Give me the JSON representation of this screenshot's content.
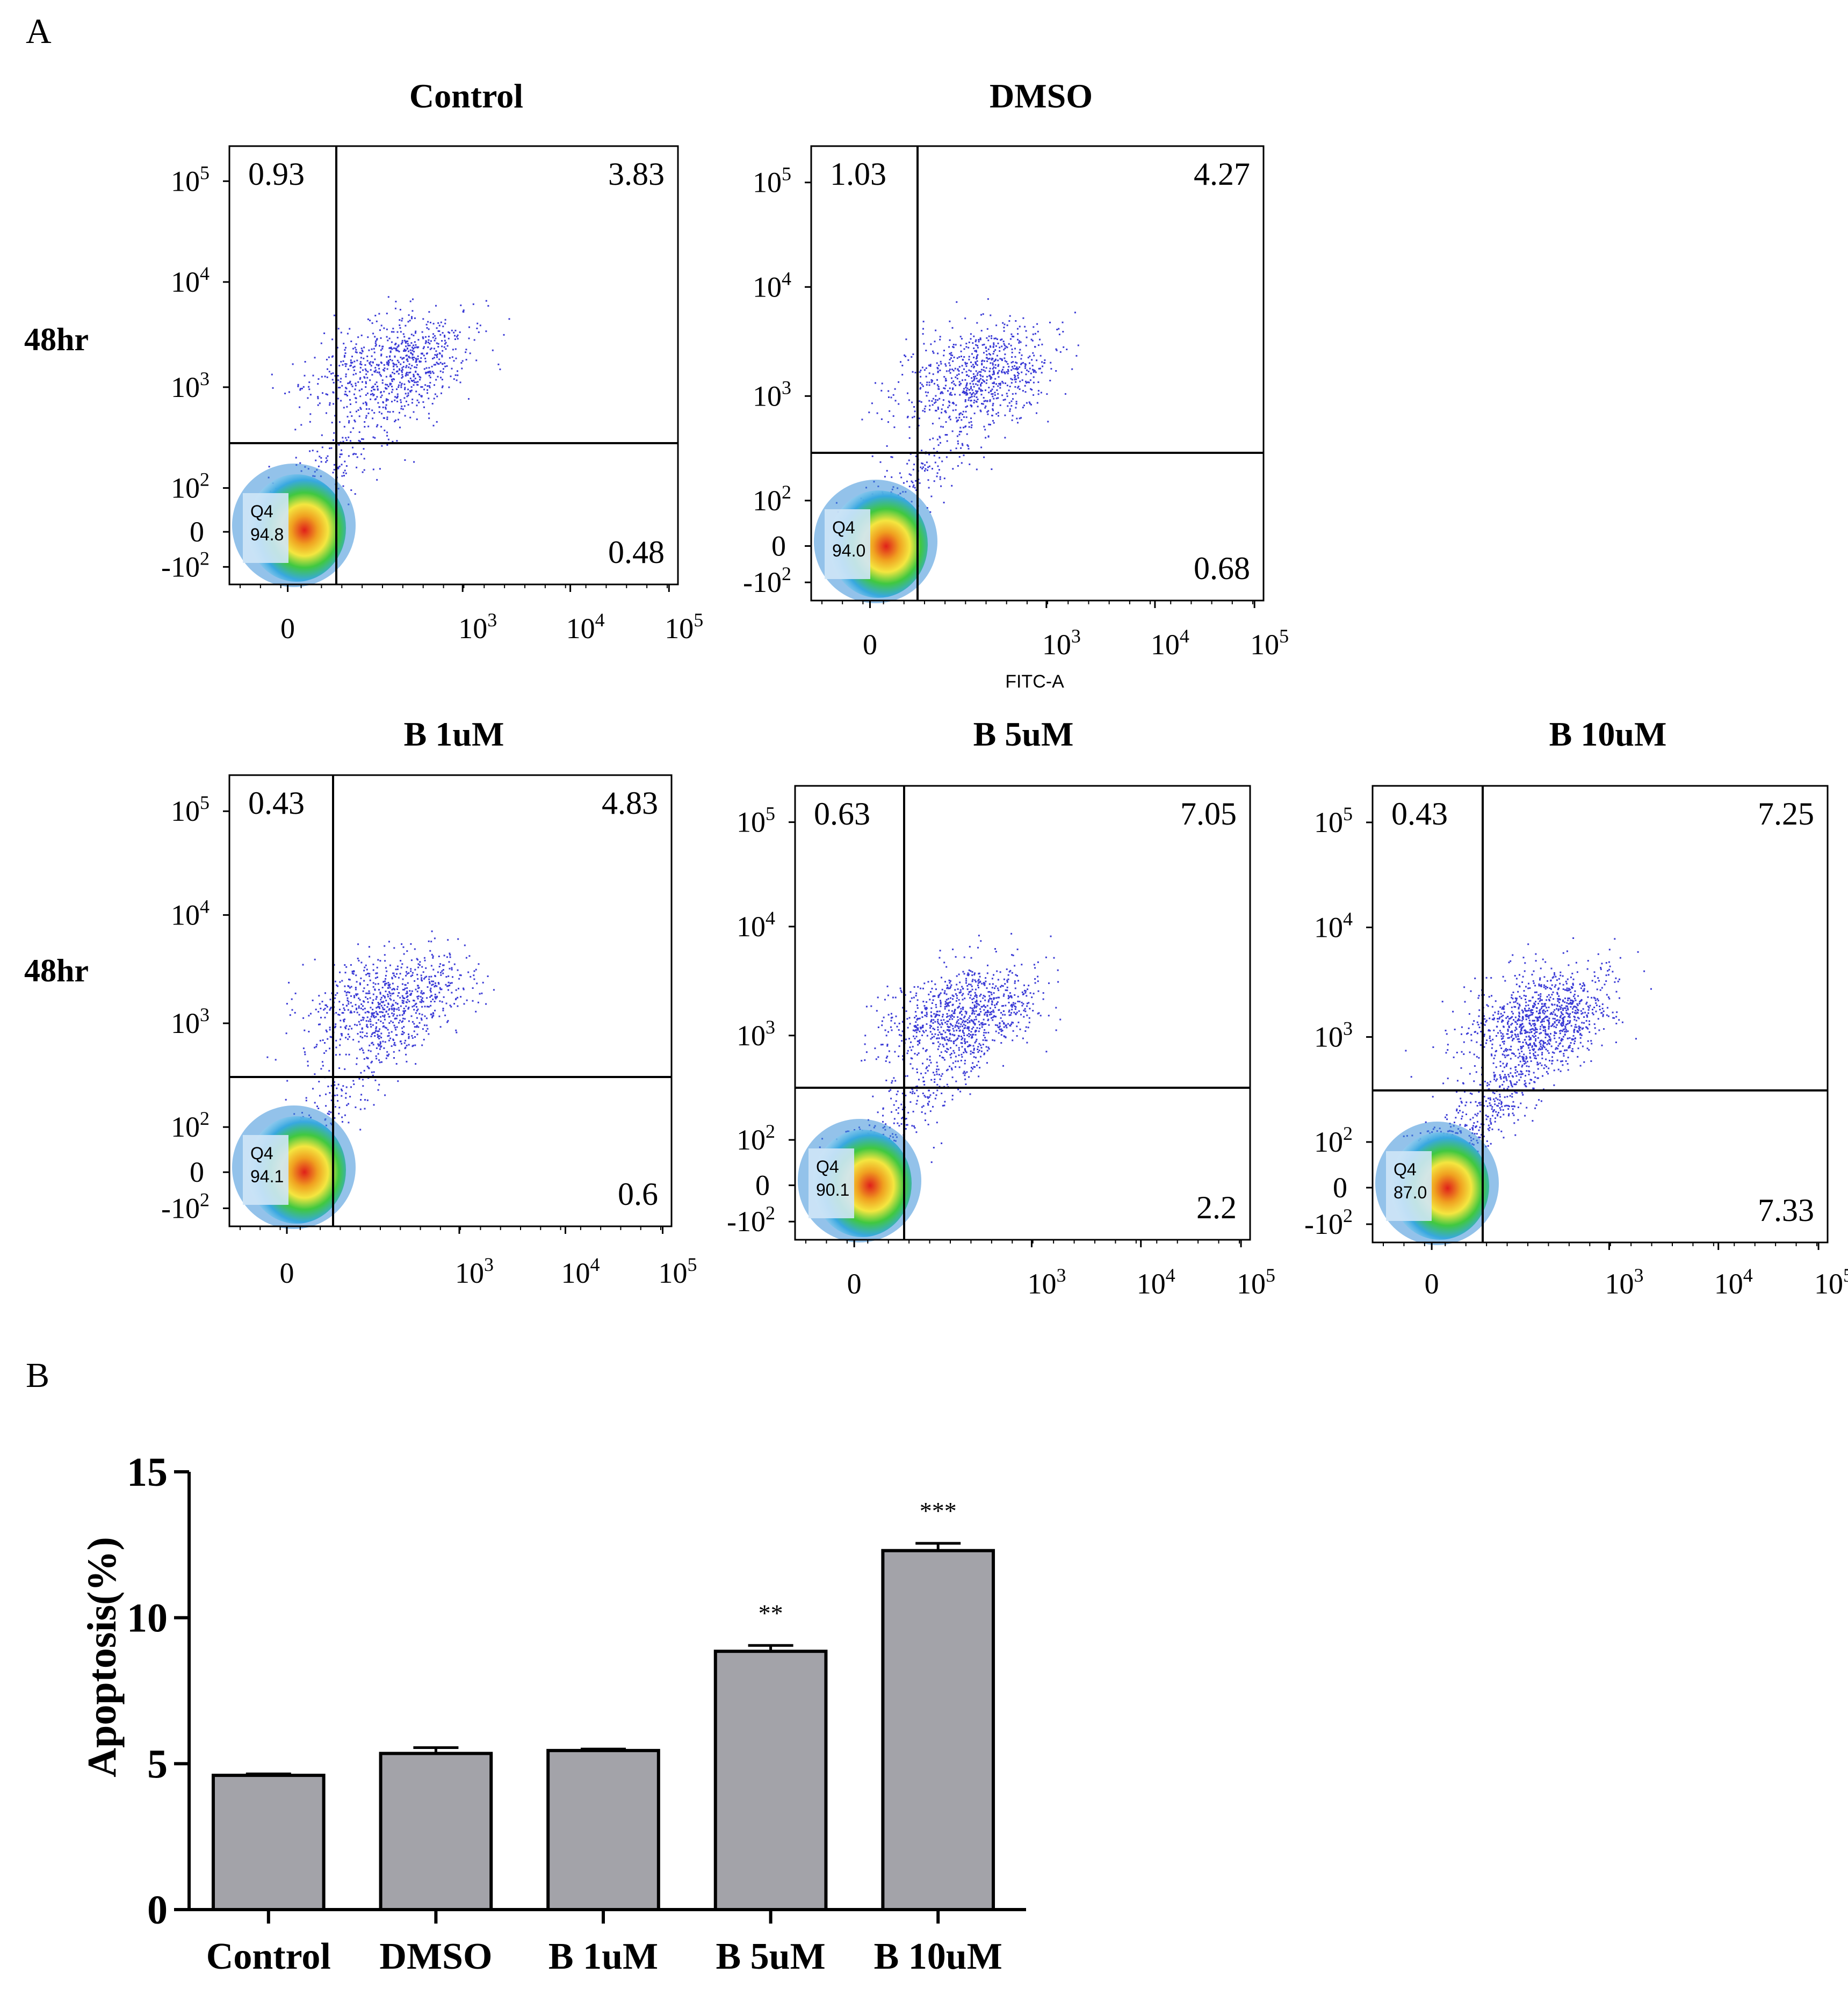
{
  "panel_labels": {
    "a": "A",
    "b": "B"
  },
  "row_label": "48hr",
  "x_axis_label": "FITC-A",
  "tick_labels": {
    "e5": "10",
    "e4": "10",
    "e3": "10",
    "e2": "10",
    "zero": "0",
    "neg": "-10",
    "exp5": "5",
    "exp4": "4",
    "exp3": "3",
    "exp2": "2"
  },
  "gate_name": "Q4",
  "colors": {
    "dots": "#3b3bd6",
    "bar_fill": "#a3a3a9",
    "axis": "#000000"
  },
  "chart_data": [
    {
      "type": "scatter",
      "title": "Control",
      "row_label": "48hr",
      "quadrants": {
        "Q1_upper_left": "0.93",
        "Q2_upper_right": "3.83",
        "Q3_lower_right": "0.48",
        "Q4_lower_left": "94.8"
      },
      "x_ticks": [
        "0",
        "10^3",
        "10^4",
        "10^5"
      ],
      "y_ticks": [
        "-10^2",
        "0",
        "10^2",
        "10^3",
        "10^4",
        "10^5"
      ]
    },
    {
      "type": "scatter",
      "title": "DMSO",
      "row_label": "48hr",
      "quadrants": {
        "Q1_upper_left": "1.03",
        "Q2_upper_right": "4.27",
        "Q3_lower_right": "0.68",
        "Q4_lower_left": "94.0"
      },
      "xlabel": "FITC-A",
      "x_ticks": [
        "0",
        "10^3",
        "10^4",
        "10^5"
      ],
      "y_ticks": [
        "-10^2",
        "0",
        "10^2",
        "10^3",
        "10^4",
        "10^5"
      ]
    },
    {
      "type": "scatter",
      "title": "B 1uM",
      "row_label": "48hr",
      "quadrants": {
        "Q1_upper_left": "0.43",
        "Q2_upper_right": "4.83",
        "Q3_lower_right": "0.6",
        "Q4_lower_left": "94.1"
      },
      "x_ticks": [
        "0",
        "10^3",
        "10^4",
        "10^5"
      ],
      "y_ticks": [
        "-10^2",
        "0",
        "10^2",
        "10^3",
        "10^4",
        "10^5"
      ]
    },
    {
      "type": "scatter",
      "title": "B 5uM",
      "row_label": "48hr",
      "quadrants": {
        "Q1_upper_left": "0.63",
        "Q2_upper_right": "7.05",
        "Q3_lower_right": "2.2",
        "Q4_lower_left": "90.1"
      },
      "x_ticks": [
        "0",
        "10^3",
        "10^4",
        "10^5"
      ],
      "y_ticks": [
        "-10^2",
        "0",
        "10^2",
        "10^3",
        "10^4",
        "10^5"
      ]
    },
    {
      "type": "scatter",
      "title": "B 10uM",
      "row_label": "48hr",
      "quadrants": {
        "Q1_upper_left": "0.43",
        "Q2_upper_right": "7.25",
        "Q3_lower_right": "7.33",
        "Q4_lower_left": "87.0"
      },
      "x_ticks": [
        "0",
        "10^3",
        "10^4",
        "10^5"
      ],
      "y_ticks": [
        "-10^2",
        "0",
        "10^2",
        "10^3",
        "10^4",
        "10^5"
      ]
    },
    {
      "type": "bar",
      "categories": [
        "Control",
        "DMSO",
        "B 1uM",
        "B 5uM",
        "B 10uM"
      ],
      "values": [
        4.6,
        5.35,
        5.45,
        8.85,
        12.3
      ],
      "errors": [
        0.05,
        0.2,
        0.05,
        0.2,
        0.25
      ],
      "significance": [
        "",
        "",
        "",
        "**",
        "***"
      ],
      "ylabel": "Apoptosis(%)",
      "xlabel": "",
      "ylim": [
        0,
        15
      ],
      "y_ticks": [
        "0",
        "5",
        "10",
        "15"
      ]
    }
  ]
}
